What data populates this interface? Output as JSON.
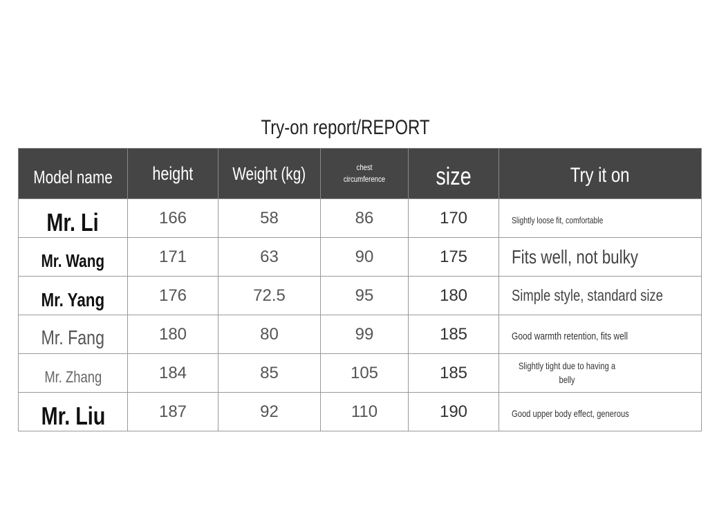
{
  "title": "Try-on report/REPORT",
  "table": {
    "headers": [
      "Model name",
      "height",
      "Weight (kg)",
      "chest circumference",
      "size",
      "Try it on"
    ],
    "rows": [
      {
        "name": "Mr. Li",
        "height": "166",
        "weight": "58",
        "chest": "86",
        "size": "170",
        "try": "Slightly loose fit, comfortable"
      },
      {
        "name": "Mr. Wang",
        "height": "171",
        "weight": "63",
        "chest": "90",
        "size": "175",
        "try": "Fits well, not bulky"
      },
      {
        "name": "Mr. Yang",
        "height": "176",
        "weight": "72.5",
        "chest": "95",
        "size": "180",
        "try": "Simple style, standard size"
      },
      {
        "name": "Mr. Fang",
        "height": "180",
        "weight": "80",
        "chest": "99",
        "size": "185",
        "try": "Good warmth retention, fits well"
      },
      {
        "name": "Mr. Zhang",
        "height": "184",
        "weight": "85",
        "chest": "105",
        "size": "185",
        "try": "Slightly tight due to having a belly"
      },
      {
        "name": "Mr. Liu",
        "height": "187",
        "weight": "92",
        "chest": "110",
        "size": "190",
        "try": "Good upper body effect, generous"
      }
    ]
  }
}
